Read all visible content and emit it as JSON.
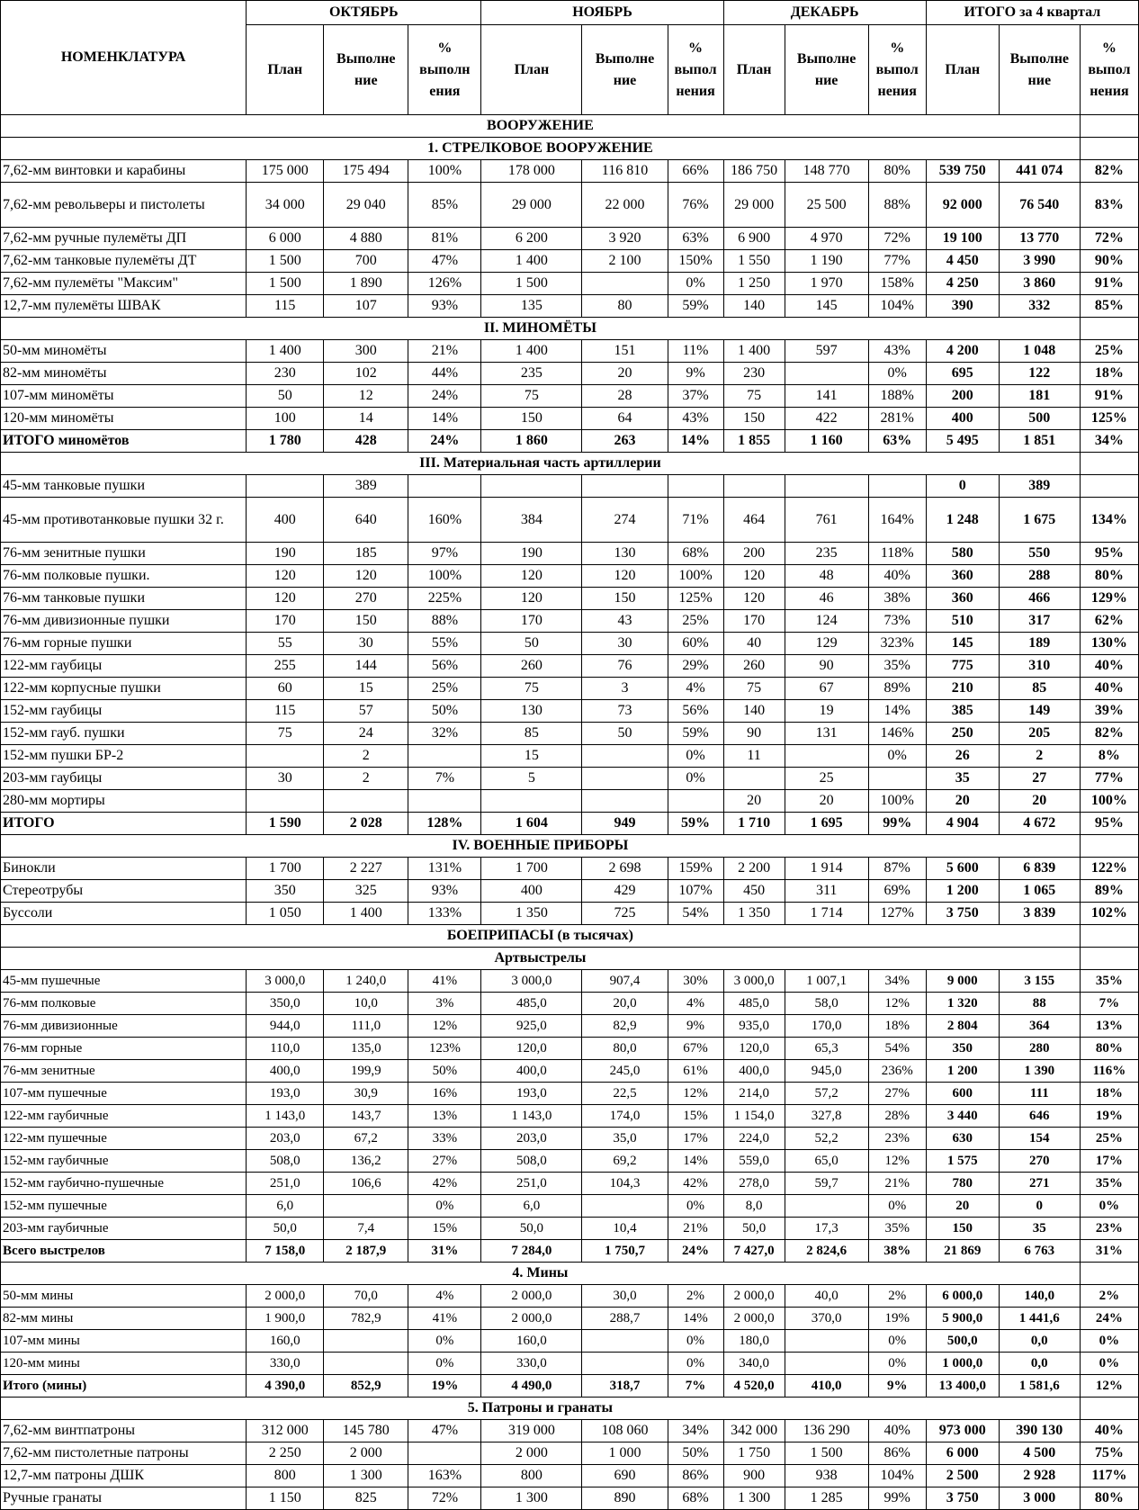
{
  "header": {
    "nomenclature": "НОМЕНКЛАТУРА",
    "months": [
      "ОКТЯБРЬ",
      "НОЯБРЬ",
      "ДЕКАБРЬ",
      "ИТОГО за 4 квартал"
    ],
    "subcols": [
      [
        "План",
        "Выполне ние",
        "% выполн ения"
      ],
      [
        "План",
        "Выполне ние",
        "% выпол нения"
      ],
      [
        "План",
        "Выполне ние",
        "% выпол нения"
      ],
      [
        "План",
        "Выполне ние",
        "% выпол нения"
      ]
    ]
  },
  "rows": [
    {
      "section": "ВООРУЖЕНИЕ"
    },
    {
      "section": "1. СТРЕЛКОВОЕ ВООРУЖЕНИЕ"
    },
    {
      "name": "7,62-мм винтовки и карабины",
      "v": [
        "175 000",
        "175 494",
        "100%",
        "178 000",
        "116 810",
        "66%",
        "186 750",
        "148 770",
        "80%",
        "539 750",
        "441 074",
        "82%"
      ]
    },
    {
      "name": "7,62-мм револьверы и пистолеты",
      "v": [
        "34 000",
        "29 040",
        "85%",
        "29 000",
        "22 000",
        "76%",
        "29 000",
        "25 500",
        "88%",
        "92 000",
        "76 540",
        "83%"
      ]
    },
    {
      "name": "7,62-мм ручные пулемёты ДП",
      "v": [
        "6 000",
        "4 880",
        "81%",
        "6 200",
        "3 920",
        "63%",
        "6 900",
        "4 970",
        "72%",
        "19 100",
        "13 770",
        "72%"
      ]
    },
    {
      "name": "7,62-мм танковые пулемёты ДТ",
      "v": [
        "1 500",
        "700",
        "47%",
        "1 400",
        "2 100",
        "150%",
        "1 550",
        "1 190",
        "77%",
        "4 450",
        "3 990",
        "90%"
      ]
    },
    {
      "name": "7,62-мм пулемёты \"Максим\"",
      "v": [
        "1 500",
        "1 890",
        "126%",
        "1 500",
        "",
        "0%",
        "1 250",
        "1 970",
        "158%",
        "4 250",
        "3 860",
        "91%"
      ]
    },
    {
      "name": "12,7-мм пулемёты ШВАК",
      "v": [
        "115",
        "107",
        "93%",
        "135",
        "80",
        "59%",
        "140",
        "145",
        "104%",
        "390",
        "332",
        "85%"
      ]
    },
    {
      "section": "II. МИНОМЁТЫ"
    },
    {
      "name": "50-мм миномёты",
      "v": [
        "1 400",
        "300",
        "21%",
        "1 400",
        "151",
        "11%",
        "1 400",
        "597",
        "43%",
        "4 200",
        "1 048",
        "25%"
      ]
    },
    {
      "name": "82-мм миномёты",
      "v": [
        "230",
        "102",
        "44%",
        "235",
        "20",
        "9%",
        "230",
        "",
        "0%",
        "695",
        "122",
        "18%"
      ]
    },
    {
      "name": "107-мм миномёты",
      "v": [
        "50",
        "12",
        "24%",
        "75",
        "28",
        "37%",
        "75",
        "141",
        "188%",
        "200",
        "181",
        "91%"
      ]
    },
    {
      "name": "120-мм миномёты",
      "v": [
        "100",
        "14",
        "14%",
        "150",
        "64",
        "43%",
        "150",
        "422",
        "281%",
        "400",
        "500",
        "125%"
      ]
    },
    {
      "name": "ИТОГО миномётов",
      "total": true,
      "v": [
        "1 780",
        "428",
        "24%",
        "1 860",
        "263",
        "14%",
        "1 855",
        "1 160",
        "63%",
        "5 495",
        "1 851",
        "34%"
      ]
    },
    {
      "section": "III. Материальная часть артиллерии"
    },
    {
      "name": "45-мм танковые пушки",
      "v": [
        "",
        "389",
        "",
        "",
        "",
        "",
        "",
        "",
        "",
        "0",
        "389",
        ""
      ]
    },
    {
      "name": "45-мм противотанковые пушки 32 г.",
      "v": [
        "400",
        "640",
        "160%",
        "384",
        "274",
        "71%",
        "464",
        "761",
        "164%",
        "1 248",
        "1 675",
        "134%"
      ]
    },
    {
      "name": "76-мм зенитные пушки",
      "v": [
        "190",
        "185",
        "97%",
        "190",
        "130",
        "68%",
        "200",
        "235",
        "118%",
        "580",
        "550",
        "95%"
      ]
    },
    {
      "name": "76-мм полковые пушки.",
      "v": [
        "120",
        "120",
        "100%",
        "120",
        "120",
        "100%",
        "120",
        "48",
        "40%",
        "360",
        "288",
        "80%"
      ]
    },
    {
      "name": "76-мм танковые пушки",
      "v": [
        "120",
        "270",
        "225%",
        "120",
        "150",
        "125%",
        "120",
        "46",
        "38%",
        "360",
        "466",
        "129%"
      ]
    },
    {
      "name": "76-мм дивизионные пушки",
      "v": [
        "170",
        "150",
        "88%",
        "170",
        "43",
        "25%",
        "170",
        "124",
        "73%",
        "510",
        "317",
        "62%"
      ]
    },
    {
      "name": "76-мм горные пушки",
      "v": [
        "55",
        "30",
        "55%",
        "50",
        "30",
        "60%",
        "40",
        "129",
        "323%",
        "145",
        "189",
        "130%"
      ]
    },
    {
      "name": "122-мм гаубицы",
      "v": [
        "255",
        "144",
        "56%",
        "260",
        "76",
        "29%",
        "260",
        "90",
        "35%",
        "775",
        "310",
        "40%"
      ]
    },
    {
      "name": "122-мм корпусные пушки",
      "v": [
        "60",
        "15",
        "25%",
        "75",
        "3",
        "4%",
        "75",
        "67",
        "89%",
        "210",
        "85",
        "40%"
      ]
    },
    {
      "name": "152-мм гаубицы",
      "v": [
        "115",
        "57",
        "50%",
        "130",
        "73",
        "56%",
        "140",
        "19",
        "14%",
        "385",
        "149",
        "39%"
      ]
    },
    {
      "name": "152-мм гауб. пушки",
      "v": [
        "75",
        "24",
        "32%",
        "85",
        "50",
        "59%",
        "90",
        "131",
        "146%",
        "250",
        "205",
        "82%"
      ]
    },
    {
      "name": "152-мм пушки БР-2",
      "v": [
        "",
        "2",
        "",
        "15",
        "",
        "0%",
        "11",
        "",
        "0%",
        "26",
        "2",
        "8%"
      ]
    },
    {
      "name": "203-мм гаубицы",
      "v": [
        "30",
        "2",
        "7%",
        "5",
        "",
        "0%",
        "",
        "25",
        "",
        "35",
        "27",
        "77%"
      ]
    },
    {
      "name": "280-мм мортиры",
      "v": [
        "",
        "",
        "",
        "",
        "",
        "",
        "20",
        "20",
        "100%",
        "20",
        "20",
        "100%"
      ]
    },
    {
      "name": "ИТОГО",
      "total": true,
      "v": [
        "1 590",
        "2 028",
        "128%",
        "1 604",
        "949",
        "59%",
        "1 710",
        "1 695",
        "99%",
        "4 904",
        "4 672",
        "95%"
      ]
    },
    {
      "section": "IV. ВОЕННЫЕ ПРИБОРЫ"
    },
    {
      "name": "Бинокли",
      "v": [
        "1 700",
        "2 227",
        "131%",
        "1 700",
        "2 698",
        "159%",
        "2 200",
        "1 914",
        "87%",
        "5 600",
        "6 839",
        "122%"
      ]
    },
    {
      "name": "Стереотрубы",
      "v": [
        "350",
        "325",
        "93%",
        "400",
        "429",
        "107%",
        "450",
        "311",
        "69%",
        "1 200",
        "1 065",
        "89%"
      ]
    },
    {
      "name": "Буссоли",
      "v": [
        "1 050",
        "1 400",
        "133%",
        "1 350",
        "725",
        "54%",
        "1 350",
        "1 714",
        "127%",
        "3 750",
        "3 839",
        "102%"
      ]
    },
    {
      "section": "БОЕПРИПАСЫ (в тысячах)"
    },
    {
      "section": "Артвыстрелы"
    },
    {
      "name": "45-мм пушечные",
      "v": [
        "3 000,0",
        "1 240,0",
        "41%",
        "3 000,0",
        "907,4",
        "30%",
        "3 000,0",
        "1 007,1",
        "34%",
        "9 000",
        "3 155",
        "35%"
      ]
    },
    {
      "name": "76-мм полковые",
      "v": [
        "350,0",
        "10,0",
        "3%",
        "485,0",
        "20,0",
        "4%",
        "485,0",
        "58,0",
        "12%",
        "1 320",
        "88",
        "7%"
      ]
    },
    {
      "name": "76-мм дивизионные",
      "v": [
        "944,0",
        "111,0",
        "12%",
        "925,0",
        "82,9",
        "9%",
        "935,0",
        "170,0",
        "18%",
        "2 804",
        "364",
        "13%"
      ]
    },
    {
      "name": "76-мм горные",
      "v": [
        "110,0",
        "135,0",
        "123%",
        "120,0",
        "80,0",
        "67%",
        "120,0",
        "65,3",
        "54%",
        "350",
        "280",
        "80%"
      ]
    },
    {
      "name": "76-мм зенитные",
      "v": [
        "400,0",
        "199,9",
        "50%",
        "400,0",
        "245,0",
        "61%",
        "400,0",
        "945,0",
        "236%",
        "1 200",
        "1 390",
        "116%"
      ]
    },
    {
      "name": "107-мм пушечные",
      "v": [
        "193,0",
        "30,9",
        "16%",
        "193,0",
        "22,5",
        "12%",
        "214,0",
        "57,2",
        "27%",
        "600",
        "111",
        "18%"
      ]
    },
    {
      "name": "122-мм гаубичные",
      "v": [
        "1 143,0",
        "143,7",
        "13%",
        "1 143,0",
        "174,0",
        "15%",
        "1 154,0",
        "327,8",
        "28%",
        "3 440",
        "646",
        "19%"
      ]
    },
    {
      "name": "122-мм пушечные",
      "v": [
        "203,0",
        "67,2",
        "33%",
        "203,0",
        "35,0",
        "17%",
        "224,0",
        "52,2",
        "23%",
        "630",
        "154",
        "25%"
      ]
    },
    {
      "name": "152-мм гаубичные",
      "v": [
        "508,0",
        "136,2",
        "27%",
        "508,0",
        "69,2",
        "14%",
        "559,0",
        "65,0",
        "12%",
        "1 575",
        "270",
        "17%"
      ]
    },
    {
      "name": "152-мм гаубично-пушечные",
      "v": [
        "251,0",
        "106,6",
        "42%",
        "251,0",
        "104,3",
        "42%",
        "278,0",
        "59,7",
        "21%",
        "780",
        "271",
        "35%"
      ]
    },
    {
      "name": "152-мм пушечные",
      "v": [
        "6,0",
        "",
        "0%",
        "6,0",
        "",
        "0%",
        "8,0",
        "",
        "0%",
        "20",
        "0",
        "0%"
      ]
    },
    {
      "name": "203-мм гаубичные",
      "v": [
        "50,0",
        "7,4",
        "15%",
        "50,0",
        "10,4",
        "21%",
        "50,0",
        "17,3",
        "35%",
        "150",
        "35",
        "23%"
      ]
    },
    {
      "name": "Всего выстрелов",
      "total": true,
      "v": [
        "7 158,0",
        "2 187,9",
        "31%",
        "7 284,0",
        "1 750,7",
        "24%",
        "7 427,0",
        "2 824,6",
        "38%",
        "21 869",
        "6 763",
        "31%"
      ]
    },
    {
      "section": "4. Мины"
    },
    {
      "name": "50-мм мины",
      "v": [
        "2 000,0",
        "70,0",
        "4%",
        "2 000,0",
        "30,0",
        "2%",
        "2 000,0",
        "40,0",
        "2%",
        "6 000,0",
        "140,0",
        "2%"
      ]
    },
    {
      "name": "82-мм мины",
      "v": [
        "1 900,0",
        "782,9",
        "41%",
        "2 000,0",
        "288,7",
        "14%",
        "2 000,0",
        "370,0",
        "19%",
        "5 900,0",
        "1 441,6",
        "24%"
      ]
    },
    {
      "name": "107-мм мины",
      "v": [
        "160,0",
        "",
        "0%",
        "160,0",
        "",
        "0%",
        "180,0",
        "",
        "0%",
        "500,0",
        "0,0",
        "0%"
      ]
    },
    {
      "name": "120-мм мины",
      "v": [
        "330,0",
        "",
        "0%",
        "330,0",
        "",
        "0%",
        "340,0",
        "",
        "0%",
        "1 000,0",
        "0,0",
        "0%"
      ]
    },
    {
      "name": "Итого (мины)",
      "total": true,
      "v": [
        "4 390,0",
        "852,9",
        "19%",
        "4 490,0",
        "318,7",
        "7%",
        "4 520,0",
        "410,0",
        "9%",
        "13 400,0",
        "1 581,6",
        "12%"
      ]
    },
    {
      "section": "5. Патроны и гранаты"
    },
    {
      "name": "7,62-мм винтпатроны",
      "v": [
        "312 000",
        "145 780",
        "47%",
        "319 000",
        "108 060",
        "34%",
        "342 000",
        "136 290",
        "40%",
        "973 000",
        "390 130",
        "40%"
      ]
    },
    {
      "name": "7,62-мм пистолетные патроны",
      "v": [
        "2 250",
        "2 000",
        "",
        "2 000",
        "1 000",
        "50%",
        "1 750",
        "1 500",
        "86%",
        "6 000",
        "4 500",
        "75%"
      ]
    },
    {
      "name": "12,7-мм патроны ДШК",
      "v": [
        "800",
        "1 300",
        "163%",
        "800",
        "690",
        "86%",
        "900",
        "938",
        "104%",
        "2 500",
        "2 928",
        "117%"
      ]
    },
    {
      "name": "Ручные гранаты",
      "v": [
        "1 150",
        "825",
        "72%",
        "1 300",
        "890",
        "68%",
        "1 300",
        "1 285",
        "99%",
        "3 750",
        "3 000",
        "80%"
      ]
    }
  ]
}
